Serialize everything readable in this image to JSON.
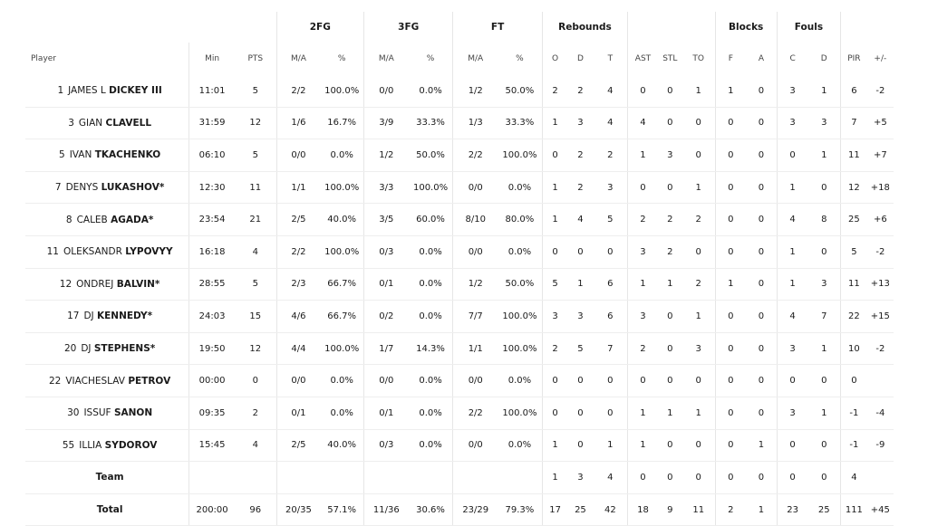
{
  "groups": [
    "2FG",
    "3FG",
    "FT",
    "Rebounds",
    "Blocks",
    "Fouls"
  ],
  "subheaders": {
    "player": "Player",
    "min": "Min",
    "pts": "PTS",
    "fg2_ma": "M/A",
    "fg2_pct": "%",
    "fg3_ma": "M/A",
    "fg3_pct": "%",
    "ft_ma": "M/A",
    "ft_pct": "%",
    "o": "O",
    "d": "D",
    "t": "T",
    "ast": "AST",
    "stl": "STL",
    "to": "TO",
    "f": "F",
    "a": "A",
    "c": "C",
    "fd": "D",
    "pir": "PIR",
    "pm": "+/-"
  },
  "players": [
    {
      "num": "1",
      "first": "JAMES L",
      "last": "DICKEY III",
      "min": "11:01",
      "pts": "5",
      "fg2": "2/2",
      "fg2p": "100.0%",
      "fg3": "0/0",
      "fg3p": "0.0%",
      "ft": "1/2",
      "ftp": "50.0%",
      "o": "2",
      "d": "2",
      "t": "4",
      "ast": "0",
      "stl": "0",
      "to": "1",
      "bf": "1",
      "ba": "0",
      "fc": "3",
      "fd": "1",
      "pir": "6",
      "pm": "-2"
    },
    {
      "num": "3",
      "first": "GIAN",
      "last": "CLAVELL",
      "min": "31:59",
      "pts": "12",
      "fg2": "1/6",
      "fg2p": "16.7%",
      "fg3": "3/9",
      "fg3p": "33.3%",
      "ft": "1/3",
      "ftp": "33.3%",
      "o": "1",
      "d": "3",
      "t": "4",
      "ast": "4",
      "stl": "0",
      "to": "0",
      "bf": "0",
      "ba": "0",
      "fc": "3",
      "fd": "3",
      "pir": "7",
      "pm": "+5"
    },
    {
      "num": "5",
      "first": "IVAN",
      "last": "TKACHENKO",
      "min": "06:10",
      "pts": "5",
      "fg2": "0/0",
      "fg2p": "0.0%",
      "fg3": "1/2",
      "fg3p": "50.0%",
      "ft": "2/2",
      "ftp": "100.0%",
      "o": "0",
      "d": "2",
      "t": "2",
      "ast": "1",
      "stl": "3",
      "to": "0",
      "bf": "0",
      "ba": "0",
      "fc": "0",
      "fd": "1",
      "pir": "11",
      "pm": "+7"
    },
    {
      "num": "7",
      "first": "DENYS",
      "last": "LUKASHOV*",
      "min": "12:30",
      "pts": "11",
      "fg2": "1/1",
      "fg2p": "100.0%",
      "fg3": "3/3",
      "fg3p": "100.0%",
      "ft": "0/0",
      "ftp": "0.0%",
      "o": "1",
      "d": "2",
      "t": "3",
      "ast": "0",
      "stl": "0",
      "to": "1",
      "bf": "0",
      "ba": "0",
      "fc": "1",
      "fd": "0",
      "pir": "12",
      "pm": "+18"
    },
    {
      "num": "8",
      "first": "CALEB",
      "last": "AGADA*",
      "min": "23:54",
      "pts": "21",
      "fg2": "2/5",
      "fg2p": "40.0%",
      "fg3": "3/5",
      "fg3p": "60.0%",
      "ft": "8/10",
      "ftp": "80.0%",
      "o": "1",
      "d": "4",
      "t": "5",
      "ast": "2",
      "stl": "2",
      "to": "2",
      "bf": "0",
      "ba": "0",
      "fc": "4",
      "fd": "8",
      "pir": "25",
      "pm": "+6"
    },
    {
      "num": "11",
      "first": "OLEKSANDR",
      "last": "LYPOVYY",
      "min": "16:18",
      "pts": "4",
      "fg2": "2/2",
      "fg2p": "100.0%",
      "fg3": "0/3",
      "fg3p": "0.0%",
      "ft": "0/0",
      "ftp": "0.0%",
      "o": "0",
      "d": "0",
      "t": "0",
      "ast": "3",
      "stl": "2",
      "to": "0",
      "bf": "0",
      "ba": "0",
      "fc": "1",
      "fd": "0",
      "pir": "5",
      "pm": "-2"
    },
    {
      "num": "12",
      "first": "ONDREJ",
      "last": "BALVIN*",
      "min": "28:55",
      "pts": "5",
      "fg2": "2/3",
      "fg2p": "66.7%",
      "fg3": "0/1",
      "fg3p": "0.0%",
      "ft": "1/2",
      "ftp": "50.0%",
      "o": "5",
      "d": "1",
      "t": "6",
      "ast": "1",
      "stl": "1",
      "to": "2",
      "bf": "1",
      "ba": "0",
      "fc": "1",
      "fd": "3",
      "pir": "11",
      "pm": "+13"
    },
    {
      "num": "17",
      "first": "DJ",
      "last": "KENNEDY*",
      "min": "24:03",
      "pts": "15",
      "fg2": "4/6",
      "fg2p": "66.7%",
      "fg3": "0/2",
      "fg3p": "0.0%",
      "ft": "7/7",
      "ftp": "100.0%",
      "o": "3",
      "d": "3",
      "t": "6",
      "ast": "3",
      "stl": "0",
      "to": "1",
      "bf": "0",
      "ba": "0",
      "fc": "4",
      "fd": "7",
      "pir": "22",
      "pm": "+15"
    },
    {
      "num": "20",
      "first": "DJ",
      "last": "STEPHENS*",
      "min": "19:50",
      "pts": "12",
      "fg2": "4/4",
      "fg2p": "100.0%",
      "fg3": "1/7",
      "fg3p": "14.3%",
      "ft": "1/1",
      "ftp": "100.0%",
      "o": "2",
      "d": "5",
      "t": "7",
      "ast": "2",
      "stl": "0",
      "to": "3",
      "bf": "0",
      "ba": "0",
      "fc": "3",
      "fd": "1",
      "pir": "10",
      "pm": "-2"
    },
    {
      "num": "22",
      "first": "VIACHESLAV",
      "last": "PETROV",
      "min": "00:00",
      "pts": "0",
      "fg2": "0/0",
      "fg2p": "0.0%",
      "fg3": "0/0",
      "fg3p": "0.0%",
      "ft": "0/0",
      "ftp": "0.0%",
      "o": "0",
      "d": "0",
      "t": "0",
      "ast": "0",
      "stl": "0",
      "to": "0",
      "bf": "0",
      "ba": "0",
      "fc": "0",
      "fd": "0",
      "pir": "0",
      "pm": ""
    },
    {
      "num": "30",
      "first": "ISSUF",
      "last": "SANON",
      "min": "09:35",
      "pts": "2",
      "fg2": "0/1",
      "fg2p": "0.0%",
      "fg3": "0/1",
      "fg3p": "0.0%",
      "ft": "2/2",
      "ftp": "100.0%",
      "o": "0",
      "d": "0",
      "t": "0",
      "ast": "1",
      "stl": "1",
      "to": "1",
      "bf": "0",
      "ba": "0",
      "fc": "3",
      "fd": "1",
      "pir": "-1",
      "pm": "-4"
    },
    {
      "num": "55",
      "first": "ILLIA",
      "last": "SYDOROV",
      "min": "15:45",
      "pts": "4",
      "fg2": "2/5",
      "fg2p": "40.0%",
      "fg3": "0/3",
      "fg3p": "0.0%",
      "ft": "0/0",
      "ftp": "0.0%",
      "o": "1",
      "d": "0",
      "t": "1",
      "ast": "1",
      "stl": "0",
      "to": "0",
      "bf": "0",
      "ba": "1",
      "fc": "0",
      "fd": "0",
      "pir": "-1",
      "pm": "-9"
    }
  ],
  "team": {
    "label": "Team",
    "o": "1",
    "d": "3",
    "t": "4",
    "ast": "0",
    "stl": "0",
    "to": "0",
    "bf": "0",
    "ba": "0",
    "fc": "0",
    "fd": "0",
    "pir": "4"
  },
  "total": {
    "label": "Total",
    "min": "200:00",
    "pts": "96",
    "fg2": "20/35",
    "fg2p": "57.1%",
    "fg3": "11/36",
    "fg3p": "30.6%",
    "ft": "23/29",
    "ftp": "79.3%",
    "o": "17",
    "d": "25",
    "t": "42",
    "ast": "18",
    "stl": "9",
    "to": "11",
    "bf": "2",
    "ba": "1",
    "fc": "23",
    "fd": "25",
    "pir": "111",
    "pm": "+45"
  }
}
